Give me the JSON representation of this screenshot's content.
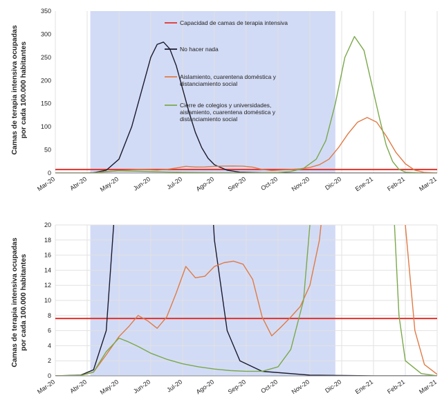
{
  "chart_data": [
    {
      "type": "line",
      "ylabel": [
        "Camas de terapia intensiva ocupadas",
        "por cada 100.000 habitantes"
      ],
      "ylim": [
        0,
        350
      ],
      "yticks": [
        0,
        50,
        100,
        150,
        200,
        250,
        300,
        350
      ],
      "xlim": [
        0,
        12
      ],
      "categories": [
        "Mar-20",
        "Abr-20",
        "May-20",
        "Jun-20",
        "Jul-20",
        "Ago-20",
        "Sep-20",
        "Oct-20",
        "Nov-20",
        "Dic-20",
        "Ene-21",
        "Feb-21",
        "Mar-21"
      ],
      "grid": "vertical",
      "shaded_interval": [
        1.1,
        8.8
      ],
      "legend": {
        "placement": "top-center",
        "entries": [
          {
            "lines": [
              "Capacidad de camas de terapia intensiva"
            ],
            "color": "#e0302a"
          },
          {
            "lines": [
              "No hacer nada"
            ],
            "color": "#1a1a2e"
          },
          {
            "lines": [
              "Aislamiento, cuarentena  doméstica y",
              "distanciamiento social"
            ],
            "color": "#e07a45"
          },
          {
            "lines": [
              "Cierre de colegios y universidades,",
              "aislamiento, cuarentena doméstica y",
              "distanciamiento social"
            ],
            "color": "#7aa84a"
          }
        ]
      },
      "series": [
        {
          "name": "Capacidad de camas de terapia intensiva",
          "color": "#e0302a",
          "x": [
            0,
            12
          ],
          "y": [
            7.6,
            7.6
          ]
        },
        {
          "name": "No hacer nada",
          "color": "#1a1a2e",
          "x": [
            0,
            0.8,
            1.2,
            1.6,
            2.0,
            2.4,
            2.8,
            3.0,
            3.2,
            3.4,
            3.6,
            3.8,
            4.0,
            4.2,
            4.4,
            4.6,
            4.8,
            5.0,
            5.4,
            5.8,
            6.5,
            8,
            10,
            12
          ],
          "y": [
            0,
            0.1,
            0.8,
            6,
            30,
            100,
            200,
            250,
            278,
            283,
            268,
            232,
            182,
            132,
            88,
            55,
            32,
            18,
            6,
            2,
            0.6,
            0.1,
            0,
            0
          ]
        },
        {
          "name": "Aislamiento, cuarentena  doméstica y distanciamiento social",
          "color": "#e07a45",
          "x": [
            0,
            0.8,
            1.2,
            1.6,
            2.0,
            2.3,
            2.6,
            2.9,
            3.2,
            3.5,
            3.8,
            4.1,
            4.4,
            4.7,
            5.0,
            5.3,
            5.6,
            5.9,
            6.2,
            6.5,
            6.8,
            7.1,
            7.4,
            7.7,
            8.0,
            8.3,
            8.6,
            8.9,
            9.2,
            9.5,
            9.8,
            10.1,
            10.4,
            10.7,
            11.0,
            11.3,
            11.6,
            12
          ],
          "y": [
            0,
            0.05,
            0.5,
            2.8,
            5.2,
            6.5,
            8.0,
            7.3,
            6.3,
            7.8,
            11,
            14.5,
            13.0,
            13.2,
            14.5,
            15.0,
            15.2,
            14.8,
            12.8,
            7.8,
            5.3,
            6.5,
            7.8,
            9.2,
            12,
            18,
            30,
            55,
            85,
            110,
            120,
            110,
            80,
            45,
            20,
            6,
            1.5,
            0.2
          ]
        },
        {
          "name": "Cierre de colegios y universidades, aislamiento, cuarentena doméstica y distanciamiento social",
          "color": "#7aa84a",
          "x": [
            0,
            0.8,
            1.2,
            1.6,
            2.0,
            2.3,
            2.6,
            3.0,
            3.5,
            4.0,
            4.5,
            5.0,
            5.5,
            6.0,
            6.5,
            7.0,
            7.4,
            7.8,
            8.2,
            8.5,
            8.8,
            9.1,
            9.4,
            9.7,
            10.0,
            10.2,
            10.4,
            10.6,
            10.8,
            11.0,
            11.5,
            12
          ],
          "y": [
            0,
            0.05,
            0.5,
            3.2,
            5.0,
            4.5,
            3.9,
            3.0,
            2.2,
            1.6,
            1.2,
            0.9,
            0.7,
            0.6,
            0.6,
            1.2,
            3.5,
            10,
            30,
            70,
            150,
            250,
            295,
            265,
            175,
            115,
            60,
            25,
            8,
            2,
            0.3,
            0
          ]
        }
      ]
    },
    {
      "type": "line",
      "ylabel": [
        "Camas de terapia intensiva ocupadas",
        "por  cada 100.000 habitantes"
      ],
      "ylim": [
        0,
        20
      ],
      "yticks": [
        0,
        2,
        4,
        6,
        8,
        10,
        12,
        14,
        16,
        18,
        20
      ],
      "xlim": [
        0,
        12
      ],
      "categories": [
        "Mar-20",
        "Abr-20",
        "May-20",
        "Jun-20",
        "Jul-20",
        "Ago-20",
        "Sep-20",
        "Oct-20",
        "Nov-20",
        "Dic-20",
        "Ene-21",
        "Feb-21",
        "Mar-21"
      ],
      "grid": "both",
      "shaded_interval": [
        1.1,
        8.8
      ],
      "series_ref": "same series as first chart, clipped to 0-20"
    }
  ]
}
